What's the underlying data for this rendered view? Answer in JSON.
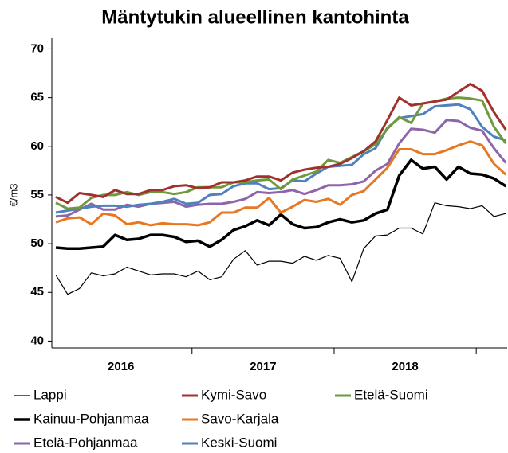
{
  "chart_data": {
    "type": "line",
    "title": "Mäntytukin alueellinen kantohinta",
    "y_label": "€/m3",
    "categories": [
      null,
      null,
      null,
      null,
      null,
      null,
      null,
      null,
      null,
      null,
      null,
      null,
      null,
      null,
      null,
      null,
      null,
      null,
      null,
      null,
      null,
      null,
      null,
      null,
      null,
      null,
      null,
      null,
      null,
      null,
      null,
      null,
      null,
      null,
      null,
      null,
      null,
      null,
      null
    ],
    "year_labels": [
      "2016",
      "2017",
      "2018"
    ],
    "ylim": [
      39.3,
      71.1
    ],
    "yticks": [
      40,
      45,
      50,
      55,
      60,
      65,
      70
    ],
    "series": [
      {
        "name": "Lappi",
        "color": "#000000",
        "width": 1.2,
        "values": [
          46.8,
          44.8,
          45.4,
          47.0,
          46.7,
          46.9,
          47.6,
          47.2,
          46.8,
          46.9,
          46.9,
          46.6,
          47.2,
          46.3,
          46.6,
          48.4,
          49.3,
          47.8,
          48.2,
          48.2,
          48.0,
          48.7,
          48.3,
          48.8,
          48.5,
          46.1,
          49.5,
          50.8,
          50.9,
          51.6,
          51.6,
          51.0,
          54.2,
          53.9,
          53.8,
          53.6,
          53.9,
          52.8,
          53.1
        ]
      },
      {
        "name": "Kymi-Savo",
        "color": "#a0322e",
        "width": 3,
        "values": [
          54.8,
          54.2,
          55.2,
          55.0,
          54.8,
          55.5,
          55.1,
          55.1,
          55.5,
          55.5,
          55.9,
          56.0,
          55.7,
          55.8,
          56.3,
          56.3,
          56.5,
          56.9,
          56.9,
          56.5,
          57.3,
          57.6,
          57.8,
          57.9,
          58.2,
          58.8,
          59.5,
          60.5,
          62.7,
          65.0,
          64.2,
          64.4,
          64.6,
          64.8,
          65.6,
          66.4,
          65.7,
          63.5,
          61.7
        ]
      },
      {
        "name": "Etelä-Suomi",
        "color": "#6e9a3c",
        "width": 3,
        "values": [
          54.2,
          53.6,
          53.7,
          54.7,
          55.0,
          55.0,
          55.3,
          55.0,
          55.3,
          55.3,
          55.1,
          55.3,
          55.8,
          55.8,
          55.8,
          56.3,
          56.3,
          56.5,
          56.6,
          55.6,
          56.6,
          57.0,
          57.4,
          58.6,
          58.3,
          58.9,
          59.5,
          60.2,
          61.8,
          63.0,
          62.4,
          64.4,
          64.6,
          64.9,
          65.0,
          64.9,
          64.7,
          62.0,
          60.3
        ]
      },
      {
        "name": "Kainuu-Pohjanmaa",
        "color": "#000000",
        "width": 3.5,
        "values": [
          49.6,
          49.5,
          49.5,
          49.6,
          49.7,
          50.9,
          50.4,
          50.5,
          50.9,
          50.9,
          50.7,
          50.2,
          50.3,
          49.7,
          50.4,
          51.4,
          51.8,
          52.4,
          51.9,
          53.0,
          52.0,
          51.6,
          51.7,
          52.2,
          52.5,
          52.2,
          52.4,
          53.1,
          53.5,
          57.0,
          58.6,
          57.7,
          57.9,
          56.6,
          57.9,
          57.2,
          57.1,
          56.7,
          55.9
        ]
      },
      {
        "name": "Savo-Karjala",
        "color": "#e87722",
        "width": 3,
        "values": [
          52.2,
          52.6,
          52.7,
          52.0,
          53.1,
          52.9,
          52.0,
          52.2,
          51.9,
          52.1,
          52.0,
          52.0,
          51.9,
          52.2,
          53.2,
          53.2,
          53.7,
          53.7,
          54.7,
          53.2,
          53.8,
          54.5,
          54.3,
          54.6,
          54.0,
          55.0,
          55.4,
          56.6,
          57.8,
          59.7,
          59.7,
          59.2,
          59.2,
          59.6,
          60.1,
          60.5,
          60.1,
          58.2,
          57.1
        ]
      },
      {
        "name": "Etelä-Pohjanmaa",
        "color": "#8e65ab",
        "width": 3,
        "values": [
          52.8,
          52.9,
          53.5,
          54.1,
          53.5,
          53.5,
          54.0,
          53.8,
          54.1,
          54.2,
          54.3,
          53.8,
          54.0,
          54.1,
          54.1,
          54.3,
          54.6,
          55.3,
          55.2,
          55.3,
          55.5,
          55.1,
          55.5,
          56.0,
          56.0,
          56.1,
          56.4,
          57.5,
          58.2,
          60.3,
          61.8,
          61.7,
          61.4,
          62.7,
          62.6,
          61.9,
          61.6,
          59.8,
          58.3
        ]
      },
      {
        "name": "Keski-Suomi",
        "color": "#4f81bd",
        "width": 3,
        "values": [
          53.2,
          53.4,
          53.6,
          53.8,
          53.9,
          53.9,
          53.8,
          54.0,
          54.1,
          54.3,
          54.6,
          54.1,
          54.2,
          55.0,
          55.1,
          55.9,
          56.2,
          56.2,
          55.6,
          55.7,
          56.5,
          56.4,
          57.2,
          57.9,
          58.0,
          58.1,
          59.2,
          59.8,
          61.9,
          62.9,
          63.1,
          63.3,
          64.1,
          64.2,
          64.3,
          63.8,
          62.0,
          61.0,
          60.6
        ]
      }
    ]
  }
}
